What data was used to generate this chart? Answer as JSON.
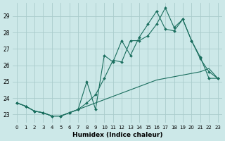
{
  "title": "",
  "xlabel": "Humidex (Indice chaleur)",
  "ylabel": "",
  "bg_color": "#cce8e8",
  "grid_color": "#aacccc",
  "line_color": "#1a6e5e",
  "xlim": [
    -0.5,
    23.5
  ],
  "ylim": [
    22.5,
    29.8
  ],
  "xticks": [
    0,
    1,
    2,
    3,
    4,
    5,
    6,
    7,
    8,
    9,
    10,
    11,
    12,
    13,
    14,
    15,
    16,
    17,
    18,
    19,
    20,
    21,
    22,
    23
  ],
  "yticks": [
    23,
    24,
    25,
    26,
    27,
    28,
    29
  ],
  "line1_x": [
    0,
    1,
    2,
    3,
    4,
    5,
    6,
    7,
    8,
    9,
    10,
    11,
    12,
    13,
    14,
    15,
    16,
    17,
    18,
    19,
    20,
    21,
    22,
    23
  ],
  "line1_y": [
    23.7,
    23.5,
    23.2,
    23.1,
    22.9,
    22.9,
    23.1,
    23.3,
    25.0,
    23.3,
    26.6,
    26.2,
    27.5,
    26.6,
    27.7,
    28.5,
    29.3,
    28.2,
    28.1,
    28.8,
    27.5,
    26.4,
    25.6,
    25.2
  ],
  "line2_x": [
    0,
    1,
    2,
    3,
    4,
    5,
    6,
    7,
    8,
    9,
    10,
    11,
    12,
    13,
    14,
    15,
    16,
    17,
    18,
    19,
    20,
    21,
    22,
    23
  ],
  "line2_y": [
    23.7,
    23.5,
    23.2,
    23.1,
    22.9,
    22.9,
    23.1,
    23.3,
    23.7,
    24.2,
    25.2,
    26.3,
    26.2,
    27.5,
    27.5,
    27.8,
    28.5,
    29.5,
    28.3,
    28.8,
    27.5,
    26.5,
    25.2,
    25.2
  ],
  "line3_x": [
    0,
    1,
    2,
    3,
    4,
    5,
    6,
    7,
    8,
    9,
    10,
    11,
    12,
    13,
    14,
    15,
    16,
    17,
    18,
    19,
    20,
    21,
    22,
    23
  ],
  "line3_y": [
    23.7,
    23.5,
    23.2,
    23.1,
    22.9,
    22.9,
    23.1,
    23.3,
    23.5,
    23.7,
    23.9,
    24.1,
    24.3,
    24.5,
    24.7,
    24.9,
    25.1,
    25.2,
    25.3,
    25.4,
    25.5,
    25.6,
    25.8,
    25.2
  ]
}
